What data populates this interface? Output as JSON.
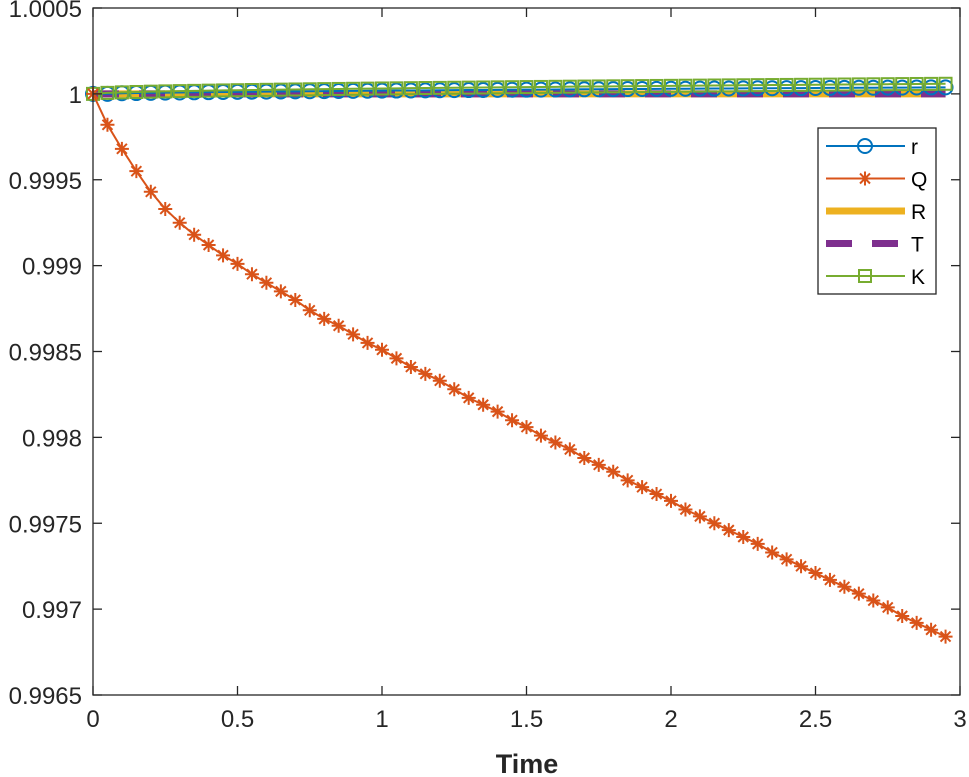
{
  "chart_data": {
    "type": "line",
    "title": "",
    "xlabel": "Time",
    "ylabel": "",
    "xlim": [
      0,
      3
    ],
    "ylim": [
      0.9965,
      1.0005
    ],
    "x_ticks": [
      0,
      0.5,
      1,
      1.5,
      2,
      2.5,
      3
    ],
    "x_tick_labels": [
      "0",
      "0.5",
      "1",
      "1.5",
      "2",
      "2.5",
      "3"
    ],
    "y_ticks": [
      0.9965,
      0.997,
      0.9975,
      0.998,
      0.9985,
      0.999,
      0.9995,
      1,
      1.0005
    ],
    "y_tick_labels": [
      "0.9965",
      "0.997",
      "0.9975",
      "0.998",
      "0.9985",
      "0.999",
      "0.9995",
      "1",
      "1.0005"
    ],
    "grid": false,
    "legend_position": "top-right",
    "x": [
      0,
      0.05,
      0.1,
      0.15,
      0.2,
      0.25,
      0.3,
      0.35,
      0.4,
      0.45,
      0.5,
      0.55,
      0.6,
      0.65,
      0.7,
      0.75,
      0.8,
      0.85,
      0.9,
      0.95,
      1,
      1.05,
      1.1,
      1.15,
      1.2,
      1.25,
      1.3,
      1.35,
      1.4,
      1.45,
      1.5,
      1.55,
      1.6,
      1.65,
      1.7,
      1.75,
      1.8,
      1.85,
      1.9,
      1.95,
      2,
      2.05,
      2.1,
      2.15,
      2.2,
      2.25,
      2.3,
      2.35,
      2.4,
      2.45,
      2.5,
      2.55,
      2.6,
      2.65,
      2.7,
      2.75,
      2.8,
      2.85,
      2.9,
      2.95
    ],
    "series": [
      {
        "name": "r",
        "color": "#0072BD",
        "marker": "circle",
        "line": "solid",
        "values": [
          1,
          1.0000001,
          1.0000035,
          1.0000048,
          1.000006,
          1.0000071,
          1.0000081,
          1.0000091,
          1.00001,
          1.0000109,
          1.0000117,
          1.0000125,
          1.0000133,
          1.000014,
          1.0000148,
          1.0000155,
          1.0000162,
          1.0000168,
          1.0000175,
          1.0000181,
          1.0000188,
          1.0000194,
          1.00002,
          1.0000206,
          1.0000212,
          1.0000217,
          1.0000223,
          1.0000229,
          1.0000234,
          1.000024,
          1.0000245,
          1.000025,
          1.0000256,
          1.0000261,
          1.0000266,
          1.0000271,
          1.0000276,
          1.0000281,
          1.0000286,
          1.0000291,
          1.0000296,
          1.0000301,
          1.0000305,
          1.000031,
          1.0000315,
          1.0000319,
          1.0000324,
          1.0000328,
          1.0000333,
          1.0000337,
          1.0000342,
          1.0000346,
          1.000035,
          1.0000355,
          1.0000359,
          1.0000363,
          1.0000367,
          1.0000372,
          1.0000376,
          1.000038
        ]
      },
      {
        "name": "Q",
        "color": "#D95319",
        "marker": "asterisk",
        "line": "solid",
        "values": [
          1,
          0.99982,
          0.99968,
          0.99955,
          0.99943,
          0.99933,
          0.99925,
          0.99918,
          0.99912,
          0.99906,
          0.99901,
          0.99895,
          0.9989,
          0.99885,
          0.9988,
          0.99874,
          0.99869,
          0.99865,
          0.9986,
          0.99855,
          0.99851,
          0.99846,
          0.99841,
          0.99837,
          0.99833,
          0.99828,
          0.99823,
          0.99819,
          0.99815,
          0.9981,
          0.99806,
          0.99801,
          0.99797,
          0.99793,
          0.99788,
          0.99784,
          0.9978,
          0.99775,
          0.99771,
          0.99767,
          0.99763,
          0.99758,
          0.99754,
          0.9975,
          0.99746,
          0.99742,
          0.99738,
          0.99733,
          0.99729,
          0.99725,
          0.99721,
          0.99717,
          0.99713,
          0.99709,
          0.99705,
          0.99701,
          0.99696,
          0.99692,
          0.99688,
          0.99684
        ]
      },
      {
        "name": "R",
        "color": "#EDB120",
        "marker": "none",
        "line": "solid-thick",
        "values": [
          1,
          1,
          1,
          1,
          1,
          1,
          1,
          1,
          1,
          1,
          1,
          1,
          1,
          1,
          1,
          1,
          1,
          1,
          1,
          1,
          1,
          1,
          1,
          1,
          1,
          1,
          1,
          1,
          1,
          1,
          1,
          1,
          1,
          1,
          1,
          1,
          1,
          1,
          1,
          1,
          1,
          1,
          1,
          1,
          1,
          1,
          1,
          1,
          1,
          1,
          1,
          1,
          1,
          1,
          1,
          1,
          1,
          1,
          1,
          1
        ]
      },
      {
        "name": "T",
        "color": "#7E2F8E",
        "marker": "none",
        "line": "dashed-thick",
        "values": [
          1,
          1,
          1,
          1,
          1,
          1,
          1,
          1,
          1,
          1,
          1,
          1,
          1,
          1,
          1,
          1,
          1,
          1,
          1,
          1,
          1,
          1,
          1,
          1,
          1,
          1,
          1,
          1,
          1,
          1,
          1,
          1,
          1,
          1,
          1,
          1,
          1,
          1,
          1,
          1,
          1,
          1,
          1,
          1,
          1,
          1,
          1,
          1,
          1,
          1,
          1,
          1,
          1,
          1,
          1,
          1,
          1,
          1,
          1,
          1
        ]
      },
      {
        "name": "K",
        "color": "#77AC30",
        "marker": "square",
        "line": "solid",
        "values": [
          1,
          1.0000059,
          1.0000088,
          1.000011,
          1.0000129,
          1.0000146,
          1.0000161,
          1.0000175,
          1.0000189,
          1.0000201,
          1.0000214,
          1.0000225,
          1.0000236,
          1.0000247,
          1.0000257,
          1.0000267,
          1.0000277,
          1.0000287,
          1.0000296,
          1.0000306,
          1.0000315,
          1.0000323,
          1.0000332,
          1.0000341,
          1.0000349,
          1.0000357,
          1.0000365,
          1.0000373,
          1.0000381,
          1.0000389,
          1.0000396,
          1.0000404,
          1.0000411,
          1.0000419,
          1.0000426,
          1.0000433,
          1.000044,
          1.0000447,
          1.0000454,
          1.0000461,
          1.0000468,
          1.0000475,
          1.0000481,
          1.0000488,
          1.0000495,
          1.0000501,
          1.0000508,
          1.0000514,
          1.000052,
          1.0000527,
          1.0000533,
          1.0000539,
          1.0000545,
          1.0000552,
          1.0000558,
          1.0000564,
          1.000057,
          1.0000576,
          1.0000582,
          1.0000588
        ]
      }
    ]
  }
}
